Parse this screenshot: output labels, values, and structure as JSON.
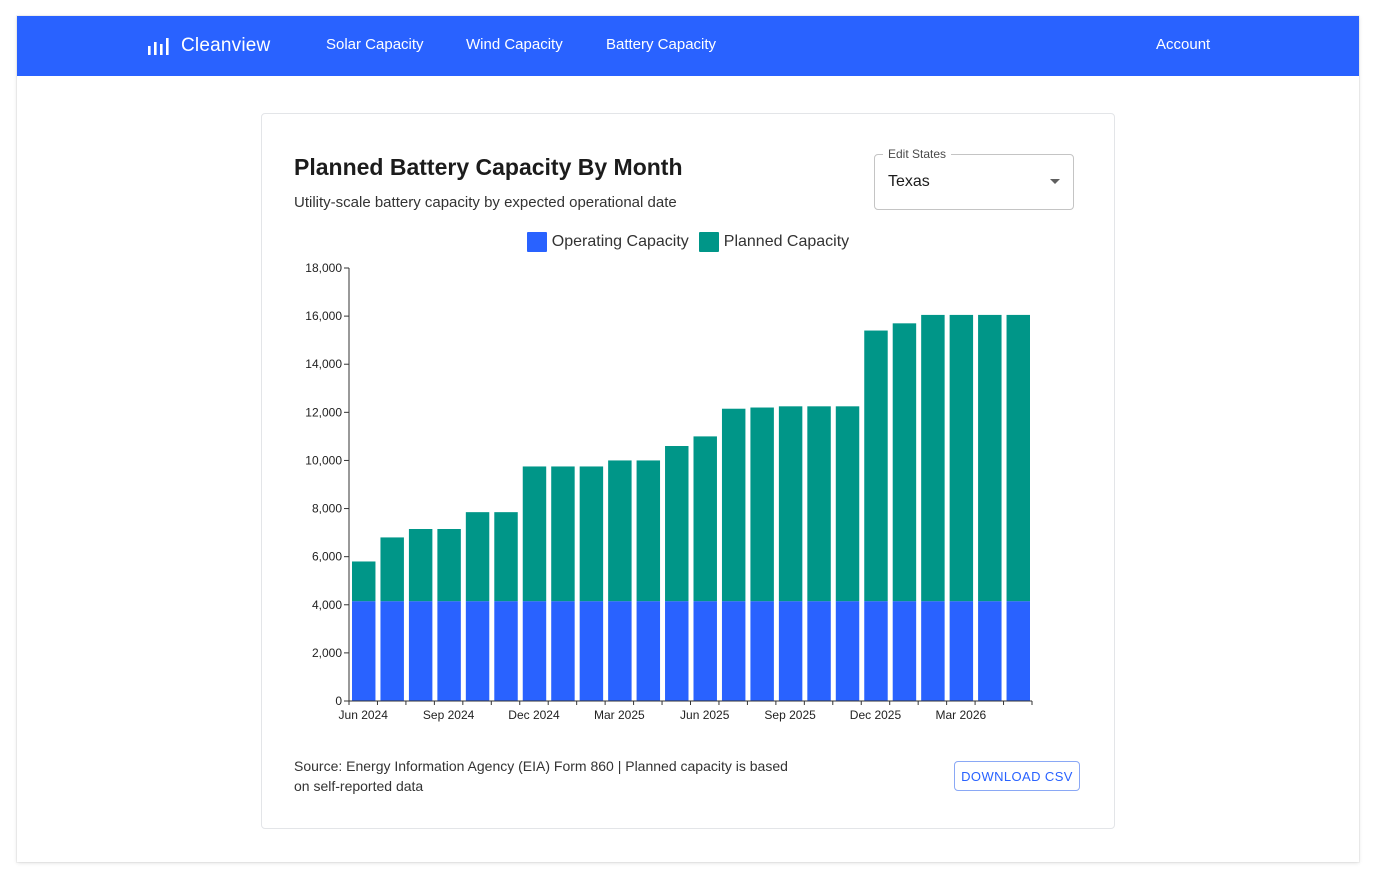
{
  "app": {
    "brand_name": "Cleanview",
    "brand_icon": "bar-chart-logo-icon",
    "nav": {
      "solar": "Solar Capacity",
      "wind": "Wind Capacity",
      "battery": "Battery Capacity",
      "account": "Account"
    }
  },
  "colors": {
    "nav_background": "#2962ff",
    "operating": "#2962ff",
    "planned": "#009688"
  },
  "card": {
    "title": "Planned Battery Capacity By Month",
    "subtitle": "Utility-scale battery capacity by expected operational date",
    "state_select": {
      "label": "Edit States",
      "value": "Texas"
    },
    "source_note": "Source: Energy Information Agency (EIA) Form 860 | Planned capacity is based on self-reported data",
    "download_label": "DOWNLOAD CSV"
  },
  "chart_data": {
    "type": "bar",
    "stacked": true,
    "title": "Planned Battery Capacity By Month",
    "subtitle": "Utility-scale battery capacity by expected operational date",
    "legend": [
      "Operating Capacity",
      "Planned Capacity"
    ],
    "legend_position": "top-center",
    "categories": [
      "Jun 2024",
      "Jul 2024",
      "Aug 2024",
      "Sep 2024",
      "Oct 2024",
      "Nov 2024",
      "Dec 2024",
      "Jan 2025",
      "Feb 2025",
      "Mar 2025",
      "Apr 2025",
      "May 2025",
      "Jun 2025",
      "Jul 2025",
      "Aug 2025",
      "Sep 2025",
      "Oct 2025",
      "Nov 2025",
      "Dec 2025",
      "Jan 2026",
      "Feb 2026",
      "Mar 2026",
      "Apr 2026",
      "May 2026"
    ],
    "x_tick_labels": [
      "Jun 2024",
      "Sep 2024",
      "Dec 2024",
      "Mar 2025",
      "Jun 2025",
      "Sep 2025",
      "Dec 2025",
      "Mar 2026"
    ],
    "series": [
      {
        "name": "Operating Capacity",
        "color": "#2962ff",
        "values": [
          4150,
          4150,
          4150,
          4150,
          4150,
          4150,
          4150,
          4150,
          4150,
          4150,
          4150,
          4150,
          4150,
          4150,
          4150,
          4150,
          4150,
          4150,
          4150,
          4150,
          4150,
          4150,
          4150,
          4150
        ]
      },
      {
        "name": "Planned Capacity",
        "color": "#009688",
        "values": [
          1650,
          2650,
          3000,
          3000,
          3700,
          3700,
          5600,
          5600,
          5600,
          5850,
          5850,
          6450,
          6850,
          8000,
          8050,
          8100,
          8100,
          8100,
          11250,
          11550,
          11900,
          11900,
          11900,
          11900
        ]
      }
    ],
    "ylim": [
      0,
      18000
    ],
    "y_ticks": [
      0,
      2000,
      4000,
      6000,
      8000,
      10000,
      12000,
      14000,
      16000,
      18000
    ],
    "xlabel": "",
    "ylabel": "",
    "grid": false
  }
}
